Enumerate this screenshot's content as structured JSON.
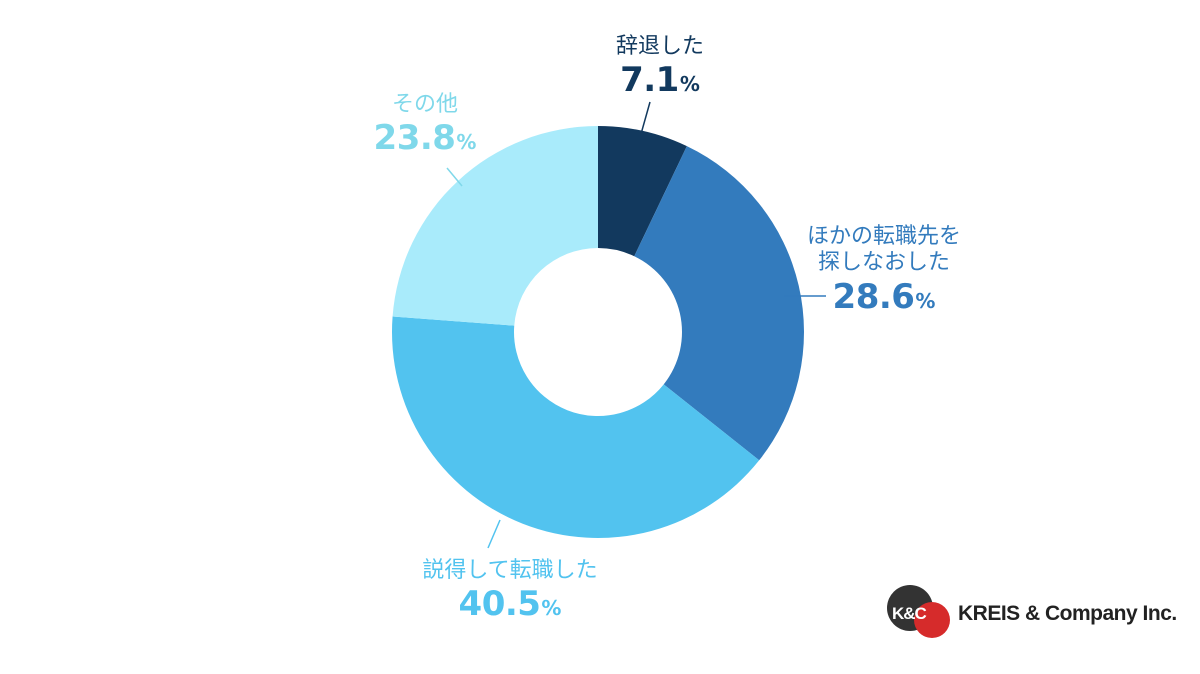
{
  "chart_data": {
    "type": "pie",
    "donut": true,
    "unit": "%",
    "slices": [
      {
        "label": "辞退した",
        "value": 7.1,
        "color": "#12395e"
      },
      {
        "label": "ほかの転職先を探しなおした",
        "label_lines": [
          "ほかの転職先を",
          "探しなおした"
        ],
        "value": 28.6,
        "color": "#337bbd"
      },
      {
        "label": "説得して転職した",
        "value": 40.5,
        "color": "#52c3ef"
      },
      {
        "label": "その他",
        "value": 23.8,
        "color": "#a9ebfb"
      }
    ]
  },
  "logo": {
    "initials": "K&C",
    "text": "KREIS & Company Inc.",
    "colors": {
      "dark": "#333333",
      "red": "#d62b2b"
    }
  }
}
